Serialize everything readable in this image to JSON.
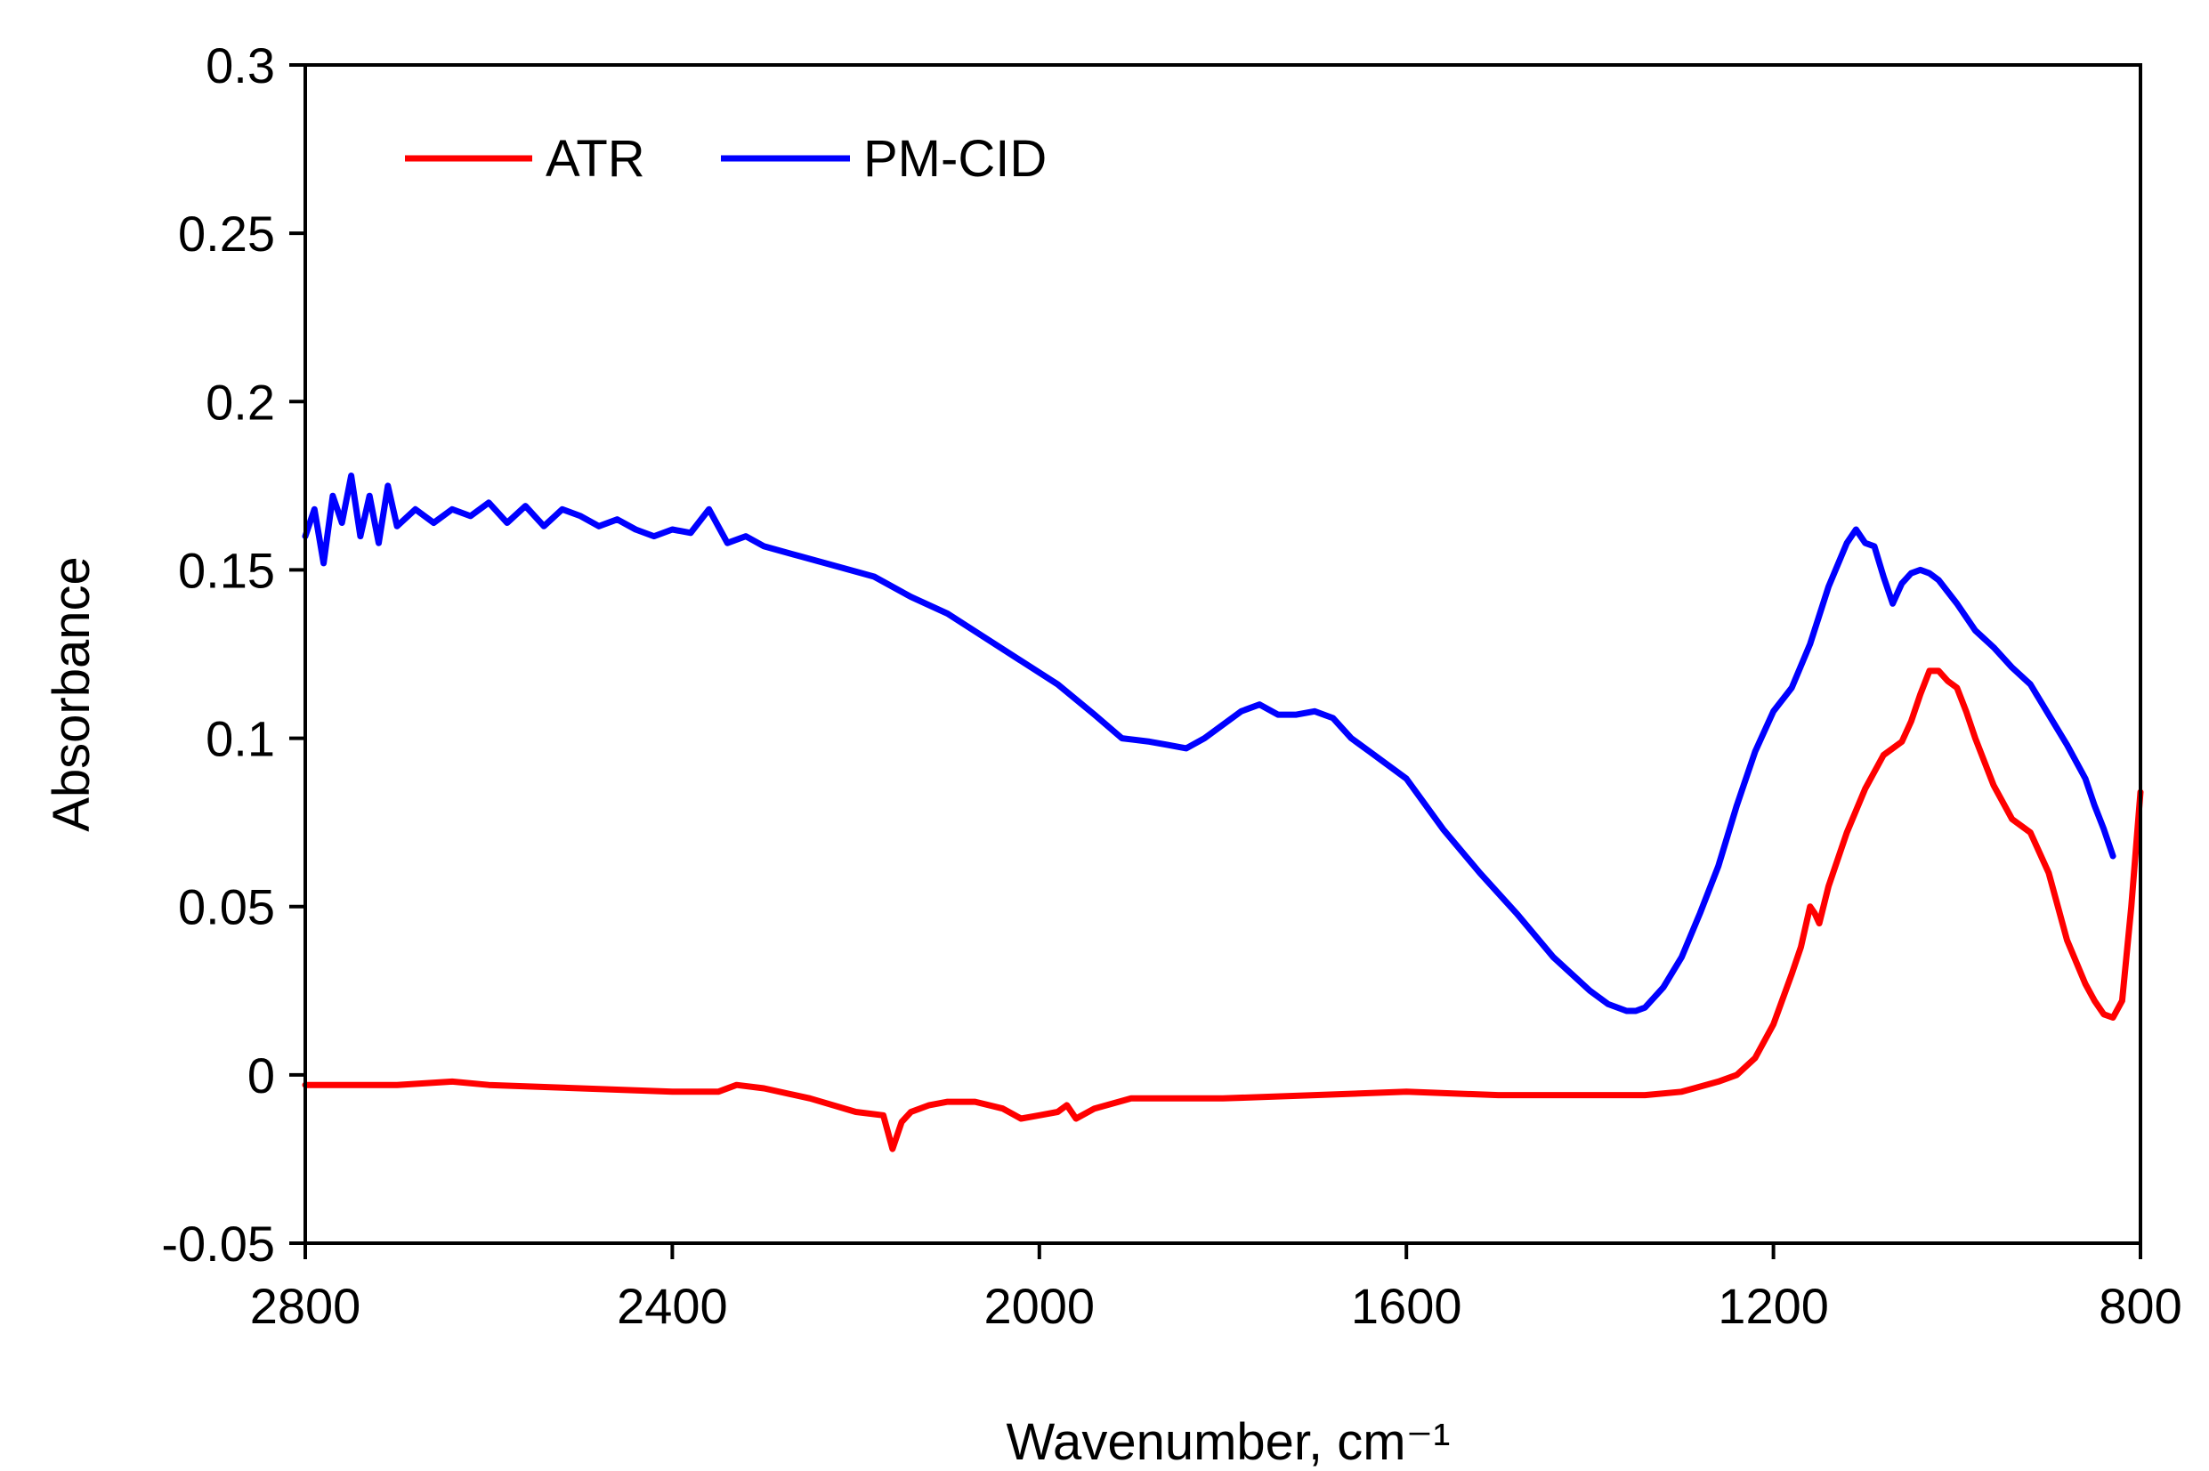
{
  "chart_data": {
    "type": "line",
    "title": "",
    "xlabel": "Wavenumber, cm⁻¹",
    "ylabel": "Absorbance",
    "xlim": [
      2800,
      800
    ],
    "x_reversed": true,
    "ylim": [
      -0.05,
      0.3
    ],
    "xticks": [
      2800,
      2400,
      2000,
      1600,
      1200,
      800
    ],
    "xtick_labels": [
      "2800",
      "2400",
      "2000",
      "1600",
      "1200",
      "800"
    ],
    "yticks": [
      -0.05,
      0,
      0.05,
      0.1,
      0.15,
      0.2,
      0.25,
      0.3
    ],
    "ytick_labels": [
      "-0.05",
      "0",
      "0.05",
      "0.1",
      "0.15",
      "0.2",
      "0.25",
      "0.3"
    ],
    "grid": false,
    "legend_position": "top-left",
    "series": [
      {
        "name": "ATR",
        "color": "#ff0000",
        "x": [
          2800,
          2700,
          2640,
          2600,
          2500,
          2400,
          2350,
          2330,
          2300,
          2250,
          2200,
          2170,
          2160,
          2150,
          2140,
          2120,
          2100,
          2070,
          2040,
          2020,
          2000,
          1980,
          1970,
          1960,
          1940,
          1900,
          1850,
          1800,
          1700,
          1600,
          1500,
          1400,
          1340,
          1300,
          1260,
          1240,
          1220,
          1200,
          1180,
          1170,
          1160,
          1155,
          1150,
          1140,
          1120,
          1100,
          1080,
          1060,
          1050,
          1040,
          1030,
          1020,
          1010,
          1000,
          990,
          980,
          960,
          940,
          920,
          900,
          880,
          860,
          850,
          840,
          830,
          820,
          810,
          800
        ],
        "values": [
          -0.003,
          -0.003,
          -0.002,
          -0.003,
          -0.004,
          -0.005,
          -0.005,
          -0.003,
          -0.004,
          -0.007,
          -0.011,
          -0.012,
          -0.022,
          -0.014,
          -0.011,
          -0.009,
          -0.008,
          -0.008,
          -0.01,
          -0.013,
          -0.012,
          -0.011,
          -0.009,
          -0.013,
          -0.01,
          -0.007,
          -0.007,
          -0.007,
          -0.006,
          -0.005,
          -0.006,
          -0.006,
          -0.006,
          -0.005,
          -0.002,
          0.0,
          0.005,
          0.015,
          0.03,
          0.038,
          0.05,
          0.048,
          0.045,
          0.056,
          0.072,
          0.085,
          0.095,
          0.099,
          0.105,
          0.113,
          0.12,
          0.12,
          0.117,
          0.115,
          0.108,
          0.1,
          0.086,
          0.076,
          0.072,
          0.06,
          0.04,
          0.027,
          0.022,
          0.018,
          0.017,
          0.022,
          0.05,
          0.084
        ]
      },
      {
        "name": "PM-CID",
        "color": "#0000ff",
        "x": [
          2800,
          2790,
          2780,
          2770,
          2760,
          2750,
          2740,
          2730,
          2720,
          2710,
          2700,
          2680,
          2660,
          2640,
          2620,
          2600,
          2580,
          2560,
          2540,
          2520,
          2500,
          2480,
          2460,
          2440,
          2420,
          2400,
          2380,
          2360,
          2340,
          2320,
          2300,
          2260,
          2220,
          2180,
          2140,
          2100,
          2060,
          2020,
          1980,
          1940,
          1910,
          1880,
          1860,
          1840,
          1820,
          1800,
          1780,
          1760,
          1740,
          1720,
          1700,
          1680,
          1660,
          1640,
          1600,
          1560,
          1520,
          1480,
          1440,
          1400,
          1380,
          1360,
          1350,
          1340,
          1320,
          1300,
          1280,
          1260,
          1240,
          1220,
          1200,
          1180,
          1160,
          1140,
          1120,
          1110,
          1100,
          1090,
          1080,
          1070,
          1060,
          1050,
          1040,
          1030,
          1020,
          1000,
          980,
          960,
          940,
          920,
          900,
          880,
          860,
          850,
          840,
          830
        ],
        "values": [
          0.16,
          0.168,
          0.152,
          0.172,
          0.164,
          0.178,
          0.16,
          0.172,
          0.158,
          0.175,
          0.163,
          0.168,
          0.164,
          0.168,
          0.166,
          0.17,
          0.164,
          0.169,
          0.163,
          0.168,
          0.166,
          0.163,
          0.165,
          0.162,
          0.16,
          0.162,
          0.161,
          0.168,
          0.158,
          0.16,
          0.157,
          0.154,
          0.151,
          0.148,
          0.142,
          0.137,
          0.13,
          0.123,
          0.116,
          0.107,
          0.1,
          0.099,
          0.098,
          0.097,
          0.1,
          0.104,
          0.108,
          0.11,
          0.107,
          0.107,
          0.108,
          0.106,
          0.1,
          0.096,
          0.088,
          0.073,
          0.06,
          0.048,
          0.035,
          0.025,
          0.021,
          0.019,
          0.019,
          0.02,
          0.026,
          0.035,
          0.048,
          0.062,
          0.08,
          0.096,
          0.108,
          0.115,
          0.128,
          0.145,
          0.158,
          0.162,
          0.158,
          0.157,
          0.148,
          0.14,
          0.146,
          0.149,
          0.15,
          0.149,
          0.147,
          0.14,
          0.132,
          0.127,
          0.121,
          0.116,
          0.107,
          0.098,
          0.088,
          0.08,
          0.073,
          0.065
        ]
      }
    ]
  }
}
